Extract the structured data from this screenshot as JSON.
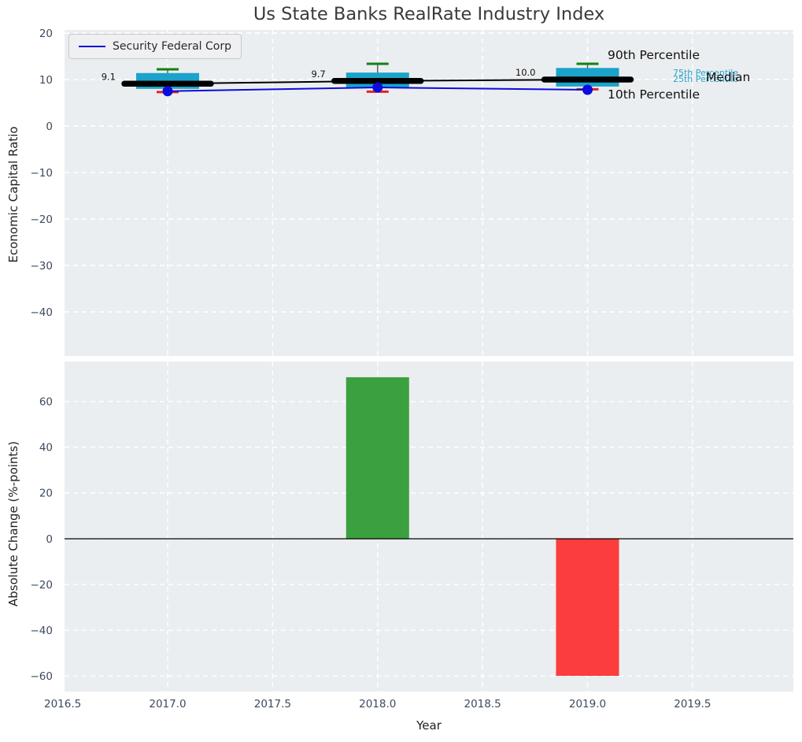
{
  "title": "Us State Banks RealRate Industry Index",
  "legend": {
    "label": "Security Federal Corp"
  },
  "annotations": {
    "p90": "90th Percentile",
    "p75": "75th Percentile",
    "p25": "25th Percentile",
    "median": "Median",
    "p10": "10th Percentile"
  },
  "colors": {
    "plot_bg": "#ebeef0",
    "grid": "#ffffff",
    "tick": "#3c4a5e",
    "box": "#1ba3cb",
    "median_line": "#000000",
    "whisker": "#555555",
    "p90_cap": "#128012",
    "p10_cap": "#e32222",
    "series_line": "#0b0bdd",
    "bar_up": "#3ba03e",
    "bar_down": "#fb3d3d",
    "zero_line": "#000000",
    "annotation_cyan": "#29a5cc",
    "annotation_black": "#111111"
  },
  "chart_data": [
    {
      "type": "boxplot-timeseries",
      "title": "Us State Banks RealRate Industry Index",
      "ylabel": "Economic Capital Ratio",
      "x": [
        2017,
        2018,
        2019
      ],
      "median": [
        9.1,
        9.7,
        10.0
      ],
      "median_labels": [
        "9.1",
        "9.7",
        "10.0"
      ],
      "q1": [
        8.0,
        8.3,
        8.5
      ],
      "q3": [
        11.4,
        11.5,
        12.5
      ],
      "p10": [
        7.3,
        7.4,
        7.9
      ],
      "p90": [
        12.2,
        13.4,
        13.4
      ],
      "series": [
        {
          "name": "Security Federal Corp",
          "values": [
            7.5,
            8.3,
            7.8
          ]
        }
      ],
      "yticks": [
        20,
        10,
        0,
        -10,
        -20,
        -30,
        -40
      ],
      "ylim": [
        -49.5,
        20.7
      ],
      "grid": true,
      "legend_position": "upper left"
    },
    {
      "type": "bar",
      "ylabel": "Absolute Change (%-points)",
      "xlabel": "Year",
      "x": [
        2018,
        2019
      ],
      "values": [
        70.6,
        -59.9
      ],
      "bar_colors": [
        "#3ba03e",
        "#fb3d3d"
      ],
      "bar_width_years": 0.3,
      "yticks": [
        60,
        40,
        20,
        0,
        -20,
        -40,
        -60
      ],
      "xticks": [
        2016.5,
        2017.0,
        2017.5,
        2018.0,
        2018.5,
        2019.0,
        2019.5
      ],
      "ylim": [
        -67,
        77
      ],
      "grid": true
    }
  ]
}
